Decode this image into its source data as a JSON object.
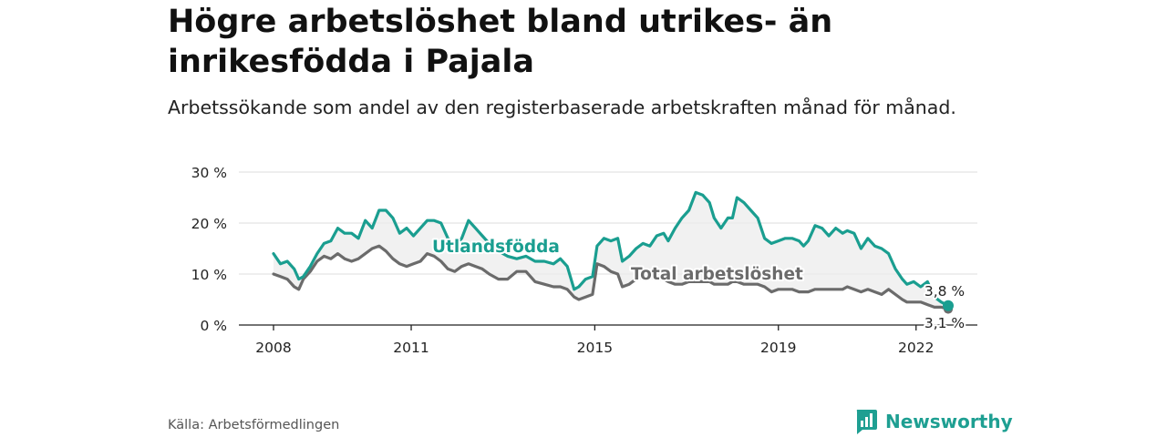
{
  "title": "Högre arbetslöshet bland utrikes- än inrikesfödda i Pajala",
  "subtitle": "Arbetssökande som andel av den registerbaserade arbetskraften månad för månad.",
  "source": "Källa: Arbetsförmedlingen",
  "brand": "Newsworthy",
  "colors": {
    "foreign": "#1a9e90",
    "total": "#6b6b6b",
    "band": "#ececec"
  },
  "chart_data": {
    "type": "line",
    "title": "Högre arbetslöshet bland utrikes- än inrikesfödda i Pajala",
    "ylim": [
      0,
      30
    ],
    "yticks": [
      0,
      10,
      20,
      30
    ],
    "ytick_labels": [
      "0 %",
      "10 %",
      "20 %",
      "30 %"
    ],
    "xlim": [
      2008.0,
      2022.7
    ],
    "xticks": [
      2008,
      2011,
      2015,
      2019,
      2022
    ],
    "xtick_labels": [
      "2008",
      "2011",
      "2015",
      "2019",
      "2022"
    ],
    "series": [
      {
        "name": "Utlandsfödda",
        "end_label": "3,8 %",
        "points": [
          [
            2008.0,
            14
          ],
          [
            2008.15,
            12
          ],
          [
            2008.3,
            12.5
          ],
          [
            2008.45,
            11
          ],
          [
            2008.55,
            9
          ],
          [
            2008.65,
            9.5
          ],
          [
            2008.8,
            11.5
          ],
          [
            2008.95,
            14
          ],
          [
            2009.1,
            16
          ],
          [
            2009.25,
            16.5
          ],
          [
            2009.4,
            19
          ],
          [
            2009.55,
            18
          ],
          [
            2009.7,
            18
          ],
          [
            2009.85,
            17
          ],
          [
            2010.0,
            20.5
          ],
          [
            2010.15,
            19
          ],
          [
            2010.3,
            22.5
          ],
          [
            2010.45,
            22.5
          ],
          [
            2010.6,
            21
          ],
          [
            2010.75,
            18
          ],
          [
            2010.9,
            19
          ],
          [
            2011.05,
            17.5
          ],
          [
            2011.2,
            19
          ],
          [
            2011.35,
            20.5
          ],
          [
            2011.5,
            20.5
          ],
          [
            2011.65,
            20
          ],
          [
            2011.8,
            17
          ],
          [
            2011.95,
            15.5
          ],
          [
            2012.1,
            17
          ],
          [
            2012.25,
            20.5
          ],
          [
            2012.4,
            19
          ],
          [
            2012.55,
            17.5
          ],
          [
            2012.7,
            16
          ],
          [
            2012.9,
            14.5
          ],
          [
            2013.1,
            13.5
          ],
          [
            2013.3,
            13
          ],
          [
            2013.5,
            13.5
          ],
          [
            2013.7,
            12.5
          ],
          [
            2013.9,
            12.5
          ],
          [
            2014.1,
            12
          ],
          [
            2014.25,
            13
          ],
          [
            2014.4,
            11.5
          ],
          [
            2014.55,
            7
          ],
          [
            2014.65,
            7.5
          ],
          [
            2014.8,
            9
          ],
          [
            2014.95,
            9.5
          ],
          [
            2015.05,
            15.5
          ],
          [
            2015.2,
            17
          ],
          [
            2015.35,
            16.5
          ],
          [
            2015.5,
            17
          ],
          [
            2015.6,
            12.5
          ],
          [
            2015.75,
            13.5
          ],
          [
            2015.9,
            15
          ],
          [
            2016.05,
            16
          ],
          [
            2016.2,
            15.5
          ],
          [
            2016.35,
            17.5
          ],
          [
            2016.5,
            18
          ],
          [
            2016.6,
            16.5
          ],
          [
            2016.75,
            19
          ],
          [
            2016.9,
            21
          ],
          [
            2017.05,
            22.5
          ],
          [
            2017.2,
            26
          ],
          [
            2017.35,
            25.5
          ],
          [
            2017.5,
            24
          ],
          [
            2017.6,
            21
          ],
          [
            2017.75,
            19
          ],
          [
            2017.9,
            21
          ],
          [
            2018.0,
            21
          ],
          [
            2018.1,
            25
          ],
          [
            2018.25,
            24
          ],
          [
            2018.4,
            22.5
          ],
          [
            2018.55,
            21
          ],
          [
            2018.7,
            17
          ],
          [
            2018.85,
            16
          ],
          [
            2019.0,
            16.5
          ],
          [
            2019.15,
            17
          ],
          [
            2019.3,
            17
          ],
          [
            2019.45,
            16.5
          ],
          [
            2019.55,
            15.5
          ],
          [
            2019.65,
            16.5
          ],
          [
            2019.8,
            19.5
          ],
          [
            2019.95,
            19
          ],
          [
            2020.1,
            17.5
          ],
          [
            2020.25,
            19
          ],
          [
            2020.4,
            18
          ],
          [
            2020.5,
            18.5
          ],
          [
            2020.65,
            18
          ],
          [
            2020.8,
            15
          ],
          [
            2020.95,
            17
          ],
          [
            2021.1,
            15.5
          ],
          [
            2021.25,
            15
          ],
          [
            2021.4,
            14
          ],
          [
            2021.55,
            11
          ],
          [
            2021.7,
            9
          ],
          [
            2021.8,
            8
          ],
          [
            2021.95,
            8.5
          ],
          [
            2022.1,
            7.5
          ],
          [
            2022.25,
            8.5
          ],
          [
            2022.4,
            5.5
          ],
          [
            2022.55,
            4.5
          ],
          [
            2022.7,
            3.8
          ]
        ]
      },
      {
        "name": "Total arbetslöshet",
        "end_label": "3,1 %",
        "points": [
          [
            2008.0,
            10
          ],
          [
            2008.15,
            9.5
          ],
          [
            2008.3,
            9
          ],
          [
            2008.45,
            7.5
          ],
          [
            2008.55,
            7
          ],
          [
            2008.65,
            9
          ],
          [
            2008.8,
            10.5
          ],
          [
            2008.95,
            12.5
          ],
          [
            2009.1,
            13.5
          ],
          [
            2009.25,
            13
          ],
          [
            2009.4,
            14
          ],
          [
            2009.55,
            13
          ],
          [
            2009.7,
            12.5
          ],
          [
            2009.85,
            13
          ],
          [
            2010.0,
            14
          ],
          [
            2010.15,
            15
          ],
          [
            2010.3,
            15.5
          ],
          [
            2010.45,
            14.5
          ],
          [
            2010.6,
            13
          ],
          [
            2010.75,
            12
          ],
          [
            2010.9,
            11.5
          ],
          [
            2011.05,
            12
          ],
          [
            2011.2,
            12.5
          ],
          [
            2011.35,
            14
          ],
          [
            2011.5,
            13.5
          ],
          [
            2011.65,
            12.5
          ],
          [
            2011.8,
            11
          ],
          [
            2011.95,
            10.5
          ],
          [
            2012.1,
            11.5
          ],
          [
            2012.25,
            12
          ],
          [
            2012.4,
            11.5
          ],
          [
            2012.55,
            11
          ],
          [
            2012.7,
            10
          ],
          [
            2012.9,
            9
          ],
          [
            2013.1,
            9
          ],
          [
            2013.3,
            10.5
          ],
          [
            2013.5,
            10.5
          ],
          [
            2013.7,
            8.5
          ],
          [
            2013.9,
            8
          ],
          [
            2014.1,
            7.5
          ],
          [
            2014.25,
            7.5
          ],
          [
            2014.4,
            7
          ],
          [
            2014.55,
            5.5
          ],
          [
            2014.65,
            5
          ],
          [
            2014.8,
            5.5
          ],
          [
            2014.95,
            6
          ],
          [
            2015.05,
            12
          ],
          [
            2015.2,
            11.5
          ],
          [
            2015.35,
            10.5
          ],
          [
            2015.5,
            10
          ],
          [
            2015.6,
            7.5
          ],
          [
            2015.75,
            8
          ],
          [
            2015.9,
            9
          ],
          [
            2016.05,
            9.5
          ],
          [
            2016.2,
            9.5
          ],
          [
            2016.35,
            9
          ],
          [
            2016.5,
            9
          ],
          [
            2016.6,
            8.5
          ],
          [
            2016.75,
            8
          ],
          [
            2016.9,
            8
          ],
          [
            2017.05,
            8.5
          ],
          [
            2017.2,
            8.5
          ],
          [
            2017.35,
            8.5
          ],
          [
            2017.5,
            8.5
          ],
          [
            2017.6,
            8
          ],
          [
            2017.75,
            8
          ],
          [
            2017.9,
            8
          ],
          [
            2018.0,
            8.5
          ],
          [
            2018.1,
            8.5
          ],
          [
            2018.25,
            8
          ],
          [
            2018.4,
            8
          ],
          [
            2018.55,
            8
          ],
          [
            2018.7,
            7.5
          ],
          [
            2018.85,
            6.5
          ],
          [
            2019.0,
            7
          ],
          [
            2019.15,
            7
          ],
          [
            2019.3,
            7
          ],
          [
            2019.45,
            6.5
          ],
          [
            2019.55,
            6.5
          ],
          [
            2019.65,
            6.5
          ],
          [
            2019.8,
            7
          ],
          [
            2019.95,
            7
          ],
          [
            2020.1,
            7
          ],
          [
            2020.25,
            7
          ],
          [
            2020.4,
            7
          ],
          [
            2020.5,
            7.5
          ],
          [
            2020.65,
            7
          ],
          [
            2020.8,
            6.5
          ],
          [
            2020.95,
            7
          ],
          [
            2021.1,
            6.5
          ],
          [
            2021.25,
            6
          ],
          [
            2021.4,
            7
          ],
          [
            2021.55,
            6
          ],
          [
            2021.7,
            5
          ],
          [
            2021.8,
            4.5
          ],
          [
            2021.95,
            4.5
          ],
          [
            2022.1,
            4.5
          ],
          [
            2022.25,
            4
          ],
          [
            2022.4,
            3.5
          ],
          [
            2022.55,
            3.5
          ],
          [
            2022.7,
            3.1
          ]
        ]
      }
    ]
  }
}
